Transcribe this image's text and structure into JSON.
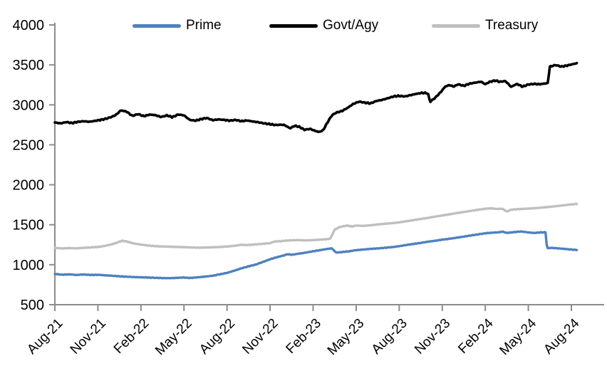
{
  "chart_data": {
    "type": "line",
    "title": "",
    "grid": false,
    "legend": {
      "position": "top",
      "entries": [
        "Prime",
        "Govt/Agy",
        "Treasury"
      ]
    },
    "x_axis": {
      "tick_labels": [
        "Aug-21",
        "Nov-21",
        "Feb-22",
        "May-22",
        "Aug-22",
        "Nov-22",
        "Feb-23",
        "May-23",
        "Aug-23",
        "Nov-23",
        "Feb-24",
        "May-24",
        "Aug-24"
      ],
      "tick_months": [
        0,
        3,
        6,
        9,
        12,
        15,
        18,
        21,
        24,
        27,
        30,
        33,
        36
      ],
      "unit": "month (Aug-2021 = 0)"
    },
    "y_axis": {
      "min": 500,
      "max": 4000,
      "tick_step": 500,
      "tick_labels": [
        "500",
        "1000",
        "1500",
        "2000",
        "2500",
        "3000",
        "3500",
        "4000"
      ]
    },
    "series": [
      {
        "name": "Prime",
        "key": "prime",
        "color": "#4F81BD",
        "points": [
          [
            0,
            885
          ],
          [
            0.5,
            875
          ],
          [
            1,
            880
          ],
          [
            1.5,
            872
          ],
          [
            2,
            878
          ],
          [
            2.5,
            872
          ],
          [
            3,
            874
          ],
          [
            3.5,
            868
          ],
          [
            4,
            862
          ],
          [
            4.5,
            855
          ],
          [
            5,
            850
          ],
          [
            5.5,
            846
          ],
          [
            6,
            843
          ],
          [
            6.5,
            840
          ],
          [
            7,
            836
          ],
          [
            7.5,
            833
          ],
          [
            8,
            832
          ],
          [
            8.5,
            836
          ],
          [
            9,
            840
          ],
          [
            9.4,
            834
          ],
          [
            10,
            843
          ],
          [
            10.5,
            852
          ],
          [
            11,
            862
          ],
          [
            11.5,
            880
          ],
          [
            12,
            898
          ],
          [
            12.5,
            925
          ],
          [
            13,
            955
          ],
          [
            13.5,
            980
          ],
          [
            14,
            1002
          ],
          [
            14.5,
            1035
          ],
          [
            15,
            1068
          ],
          [
            15.5,
            1095
          ],
          [
            16,
            1118
          ],
          [
            16.2,
            1132
          ],
          [
            16.5,
            1125
          ],
          [
            17,
            1138
          ],
          [
            17.5,
            1152
          ],
          [
            18,
            1168
          ],
          [
            18.5,
            1183
          ],
          [
            19,
            1198
          ],
          [
            19.3,
            1206
          ],
          [
            19.6,
            1152
          ],
          [
            20,
            1158
          ],
          [
            20.5,
            1168
          ],
          [
            21,
            1182
          ],
          [
            21.5,
            1190
          ],
          [
            22,
            1198
          ],
          [
            22.5,
            1204
          ],
          [
            23,
            1212
          ],
          [
            23.5,
            1220
          ],
          [
            24,
            1232
          ],
          [
            24.5,
            1247
          ],
          [
            25,
            1260
          ],
          [
            25.5,
            1273
          ],
          [
            26,
            1288
          ],
          [
            26.5,
            1300
          ],
          [
            27,
            1313
          ],
          [
            27.5,
            1325
          ],
          [
            28,
            1338
          ],
          [
            28.5,
            1352
          ],
          [
            29,
            1366
          ],
          [
            29.5,
            1380
          ],
          [
            30,
            1393
          ],
          [
            30.5,
            1401
          ],
          [
            31,
            1407
          ],
          [
            31.2,
            1414
          ],
          [
            31.5,
            1398
          ],
          [
            32,
            1408
          ],
          [
            32.5,
            1416
          ],
          [
            33,
            1404
          ],
          [
            33.4,
            1397
          ],
          [
            33.8,
            1404
          ],
          [
            34.2,
            1406
          ],
          [
            34.3,
            1204
          ],
          [
            34.6,
            1212
          ],
          [
            35,
            1206
          ],
          [
            35.5,
            1198
          ],
          [
            36,
            1190
          ],
          [
            36.4,
            1184
          ]
        ]
      },
      {
        "name": "Govt/Agy",
        "key": "govt-agy",
        "color": "#000000",
        "points": [
          [
            0,
            2780
          ],
          [
            0.4,
            2768
          ],
          [
            0.8,
            2785
          ],
          [
            1.2,
            2772
          ],
          [
            1.6,
            2788
          ],
          [
            2,
            2795
          ],
          [
            2.4,
            2788
          ],
          [
            2.8,
            2800
          ],
          [
            3.2,
            2812
          ],
          [
            3.6,
            2828
          ],
          [
            4,
            2852
          ],
          [
            4.3,
            2880
          ],
          [
            4.6,
            2932
          ],
          [
            5,
            2915
          ],
          [
            5.4,
            2862
          ],
          [
            5.8,
            2885
          ],
          [
            6.2,
            2858
          ],
          [
            6.6,
            2878
          ],
          [
            7,
            2872
          ],
          [
            7.4,
            2848
          ],
          [
            7.8,
            2868
          ],
          [
            8.2,
            2846
          ],
          [
            8.6,
            2880
          ],
          [
            9,
            2868
          ],
          [
            9.4,
            2812
          ],
          [
            9.8,
            2802
          ],
          [
            10.2,
            2822
          ],
          [
            10.6,
            2836
          ],
          [
            11,
            2808
          ],
          [
            11.4,
            2818
          ],
          [
            11.8,
            2812
          ],
          [
            12.2,
            2802
          ],
          [
            12.6,
            2812
          ],
          [
            13,
            2795
          ],
          [
            13.4,
            2805
          ],
          [
            13.8,
            2792
          ],
          [
            14.2,
            2782
          ],
          [
            14.6,
            2768
          ],
          [
            15,
            2758
          ],
          [
            15.4,
            2748
          ],
          [
            15.8,
            2752
          ],
          [
            16,
            2748
          ],
          [
            16.4,
            2706
          ],
          [
            16.7,
            2738
          ],
          [
            17,
            2728
          ],
          [
            17.4,
            2688
          ],
          [
            17.8,
            2700
          ],
          [
            18,
            2684
          ],
          [
            18.4,
            2660
          ],
          [
            18.7,
            2682
          ],
          [
            19,
            2780
          ],
          [
            19.3,
            2868
          ],
          [
            19.6,
            2902
          ],
          [
            20,
            2922
          ],
          [
            20.4,
            2962
          ],
          [
            20.8,
            3012
          ],
          [
            21.2,
            3040
          ],
          [
            21.6,
            3028
          ],
          [
            22,
            3018
          ],
          [
            22.4,
            3048
          ],
          [
            22.8,
            3062
          ],
          [
            23.2,
            3082
          ],
          [
            23.6,
            3105
          ],
          [
            24,
            3112
          ],
          [
            24.4,
            3105
          ],
          [
            24.8,
            3122
          ],
          [
            25.2,
            3138
          ],
          [
            25.6,
            3150
          ],
          [
            26,
            3145
          ],
          [
            26.15,
            3038
          ],
          [
            26.5,
            3088
          ],
          [
            26.9,
            3160
          ],
          [
            27.2,
            3228
          ],
          [
            27.5,
            3248
          ],
          [
            27.8,
            3228
          ],
          [
            28.1,
            3258
          ],
          [
            28.5,
            3238
          ],
          [
            28.9,
            3265
          ],
          [
            29.3,
            3278
          ],
          [
            29.7,
            3290
          ],
          [
            30,
            3258
          ],
          [
            30.3,
            3288
          ],
          [
            30.7,
            3305
          ],
          [
            31,
            3288
          ],
          [
            31.4,
            3298
          ],
          [
            31.8,
            3225
          ],
          [
            32.2,
            3262
          ],
          [
            32.6,
            3228
          ],
          [
            33,
            3255
          ],
          [
            33.4,
            3262
          ],
          [
            33.8,
            3258
          ],
          [
            34.2,
            3268
          ],
          [
            34.35,
            3272
          ],
          [
            34.5,
            3478
          ],
          [
            34.9,
            3498
          ],
          [
            35.3,
            3478
          ],
          [
            35.7,
            3492
          ],
          [
            36,
            3505
          ],
          [
            36.4,
            3522
          ]
        ]
      },
      {
        "name": "Treasury",
        "key": "treasury",
        "color": "#BFBFBF",
        "points": [
          [
            0,
            1210
          ],
          [
            0.5,
            1204
          ],
          [
            1,
            1208
          ],
          [
            1.5,
            1205
          ],
          [
            2,
            1212
          ],
          [
            2.5,
            1216
          ],
          [
            3,
            1222
          ],
          [
            3.5,
            1236
          ],
          [
            4,
            1256
          ],
          [
            4.4,
            1282
          ],
          [
            4.7,
            1300
          ],
          [
            5,
            1290
          ],
          [
            5.5,
            1266
          ],
          [
            6,
            1252
          ],
          [
            6.5,
            1240
          ],
          [
            7,
            1233
          ],
          [
            7.5,
            1228
          ],
          [
            8,
            1226
          ],
          [
            8.5,
            1222
          ],
          [
            9,
            1220
          ],
          [
            9.5,
            1216
          ],
          [
            10,
            1214
          ],
          [
            10.5,
            1215
          ],
          [
            11,
            1218
          ],
          [
            11.5,
            1222
          ],
          [
            12,
            1228
          ],
          [
            12.5,
            1236
          ],
          [
            13,
            1250
          ],
          [
            13.4,
            1246
          ],
          [
            14,
            1254
          ],
          [
            14.5,
            1262
          ],
          [
            15,
            1270
          ],
          [
            15.3,
            1290
          ],
          [
            15.7,
            1294
          ],
          [
            16,
            1300
          ],
          [
            16.5,
            1306
          ],
          [
            17,
            1308
          ],
          [
            17.5,
            1304
          ],
          [
            18,
            1308
          ],
          [
            18.5,
            1314
          ],
          [
            19,
            1320
          ],
          [
            19.2,
            1328
          ],
          [
            19.5,
            1438
          ],
          [
            19.8,
            1468
          ],
          [
            20.1,
            1482
          ],
          [
            20.4,
            1490
          ],
          [
            20.7,
            1478
          ],
          [
            21,
            1490
          ],
          [
            21.5,
            1486
          ],
          [
            22,
            1494
          ],
          [
            22.5,
            1504
          ],
          [
            23,
            1512
          ],
          [
            23.5,
            1520
          ],
          [
            24,
            1530
          ],
          [
            24.5,
            1544
          ],
          [
            25,
            1558
          ],
          [
            25.5,
            1572
          ],
          [
            26,
            1586
          ],
          [
            26.5,
            1602
          ],
          [
            27,
            1616
          ],
          [
            27.5,
            1630
          ],
          [
            28,
            1646
          ],
          [
            28.5,
            1660
          ],
          [
            29,
            1674
          ],
          [
            29.5,
            1688
          ],
          [
            30,
            1700
          ],
          [
            30.4,
            1706
          ],
          [
            30.8,
            1698
          ],
          [
            31.2,
            1700
          ],
          [
            31.5,
            1664
          ],
          [
            31.8,
            1688
          ],
          [
            32.2,
            1694
          ],
          [
            32.6,
            1698
          ],
          [
            33,
            1702
          ],
          [
            33.5,
            1708
          ],
          [
            34,
            1716
          ],
          [
            34.5,
            1724
          ],
          [
            35,
            1734
          ],
          [
            35.5,
            1744
          ],
          [
            36,
            1754
          ],
          [
            36.4,
            1762
          ]
        ]
      }
    ],
    "axis_color": "#8C8C8C",
    "text_color": "#000000"
  }
}
